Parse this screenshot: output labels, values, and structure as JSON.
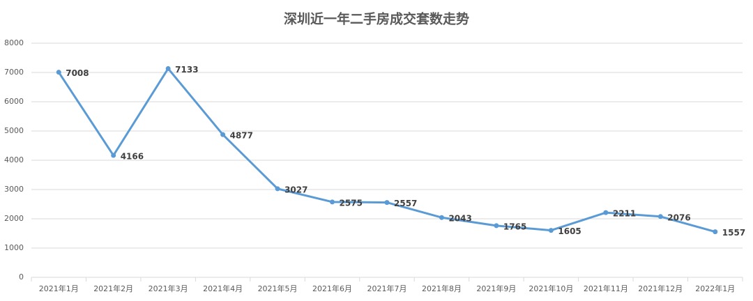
{
  "chart_data": {
    "type": "line",
    "title": "深圳近一年二手房成交套数走势",
    "categories": [
      "2021年1月",
      "2021年2月",
      "2021年3月",
      "2021年4月",
      "2021年5月",
      "2021年6月",
      "2021年7月",
      "2021年8月",
      "2021年9月",
      "2021年10月",
      "2021年11月",
      "2021年12月",
      "2022年1月"
    ],
    "series": [
      {
        "name": "成交套数",
        "color": "#5b9bd5",
        "values": [
          7008,
          4166,
          7133,
          4877,
          3027,
          2575,
          2557,
          2043,
          1765,
          1605,
          2211,
          2076,
          1557
        ]
      }
    ],
    "ylim": [
      0,
      8000
    ],
    "yticks": [
      0,
      1000,
      2000,
      3000,
      4000,
      5000,
      6000,
      7000,
      8000
    ],
    "grid": true
  }
}
